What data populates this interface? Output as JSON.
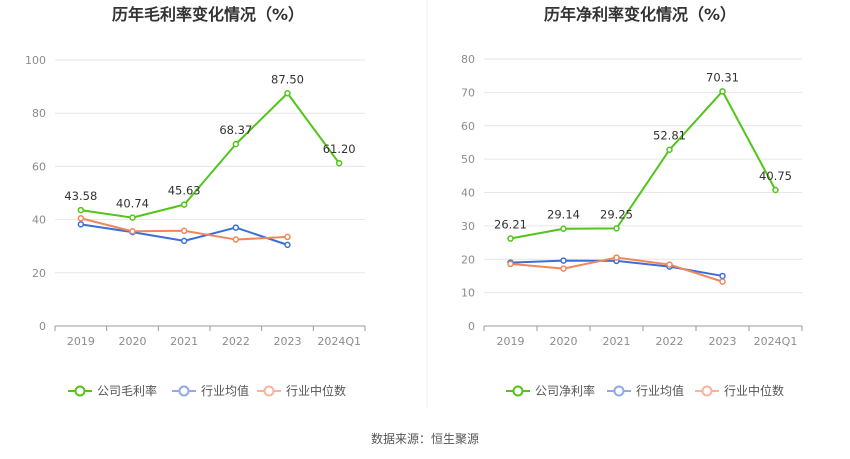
{
  "source_text": "数据来源：恒生聚源",
  "chart_data": [
    {
      "type": "line",
      "title": "历年毛利率变化情况（%）",
      "categories": [
        "2019",
        "2020",
        "2021",
        "2022",
        "2023",
        "2024Q1"
      ],
      "yticks": [
        "0",
        "20",
        "40",
        "60",
        "80",
        "100"
      ],
      "ylim": [
        0,
        100
      ],
      "series": [
        {
          "name": "公司毛利率",
          "color": "#52c41a",
          "labeled": true,
          "values": [
            43.58,
            40.74,
            45.63,
            68.37,
            87.5,
            61.2
          ],
          "labels": [
            "43.58",
            "40.74",
            "45.63",
            "68.37",
            "87.50",
            "61.20"
          ]
        },
        {
          "name": "行业均值",
          "color": "#3b6fd8",
          "labeled": false,
          "values": [
            38.2,
            35.3,
            32.0,
            37.0,
            30.5,
            null
          ]
        },
        {
          "name": "行业中位数",
          "color": "#f0865a",
          "labeled": false,
          "values": [
            40.5,
            35.6,
            35.8,
            32.5,
            33.5,
            null
          ]
        }
      ]
    },
    {
      "type": "line",
      "title": "历年净利率变化情况（%）",
      "categories": [
        "2019",
        "2020",
        "2021",
        "2022",
        "2023",
        "2024Q1"
      ],
      "yticks": [
        "0",
        "10",
        "20",
        "30",
        "40",
        "50",
        "60",
        "70",
        "80"
      ],
      "ylim": [
        0,
        80
      ],
      "series": [
        {
          "name": "公司净利率",
          "color": "#52c41a",
          "labeled": true,
          "values": [
            26.21,
            29.14,
            29.25,
            52.81,
            70.31,
            40.75
          ],
          "labels": [
            "26.21",
            "29.14",
            "29.25",
            "52.81",
            "70.31",
            "40.75"
          ]
        },
        {
          "name": "行业均值",
          "color": "#3b6fd8",
          "labeled": false,
          "values": [
            19.0,
            19.6,
            19.5,
            17.8,
            15.0,
            null
          ]
        },
        {
          "name": "行业中位数",
          "color": "#f0865a",
          "labeled": false,
          "values": [
            18.6,
            17.2,
            20.5,
            18.4,
            13.3,
            null
          ]
        }
      ]
    }
  ],
  "legend_colors": [
    "#52c41a",
    "#8fa9ea",
    "#f7b49a"
  ]
}
